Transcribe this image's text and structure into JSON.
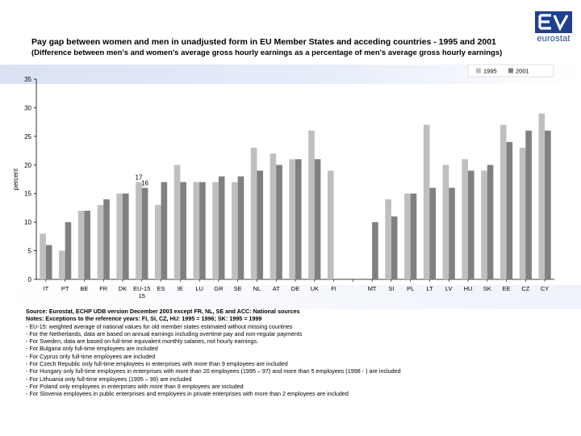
{
  "header": {
    "title": "Pay gap between women and men in unadjusted form in EU Member States and acceding countries - 1995 and 2001",
    "subtitle": "(Difference between men's and women's average gross hourly earnings as a percentage of men's average gross hourly earnings)",
    "logo_text": "eurostat"
  },
  "colors": {
    "series_1995": "#bfbfbf",
    "series_2001": "#808080",
    "brand": "#1f3f8f"
  },
  "chart_data": {
    "type": "bar",
    "ylabel": "percent",
    "ylim": [
      0,
      35
    ],
    "yticks": [
      0,
      5,
      10,
      15,
      20,
      25,
      30,
      35
    ],
    "grid": false,
    "legend_position": "top-right",
    "categories": [
      "IT",
      "PT",
      "BE",
      "FR",
      "DK",
      "EU-15",
      "ES",
      "IE",
      "LU",
      "GR",
      "SE",
      "NL",
      "AT",
      "DE",
      "UK",
      "FI",
      "",
      "MT",
      "SI",
      "PL",
      "LT",
      "LV",
      "HU",
      "SK",
      "EE",
      "CZ",
      "CY"
    ],
    "category_sublabels": {
      "5": "15"
    },
    "series": [
      {
        "name": "1995",
        "values": [
          8,
          5,
          12,
          13,
          15,
          17,
          13,
          20,
          17,
          17,
          17,
          23,
          22,
          21,
          26,
          19,
          null,
          null,
          14,
          15,
          27,
          20,
          21,
          19,
          27,
          23,
          29
        ]
      },
      {
        "name": "2001",
        "values": [
          6,
          10,
          12,
          14,
          15,
          16,
          17,
          17,
          17,
          18,
          18,
          19,
          20,
          21,
          21,
          null,
          null,
          10,
          11,
          15,
          16,
          16,
          19,
          20,
          24,
          26,
          26
        ]
      }
    ],
    "annotations": [
      {
        "category": "EU-15",
        "series": "1995",
        "text": "17"
      },
      {
        "category": "EU-15",
        "series": "2001",
        "text": "16"
      }
    ]
  },
  "notes": {
    "source": "Source: Eurostat, ECHP UDB version December 2003 except FR, NL, SE and ACC: National sources",
    "notes_heading": "Notes: Exceptions to the reference years: FI, SI, CZ, HU: 1995 = 1996; SK: 1995 = 1999",
    "lines": [
      "- EU-15: weighted average of national values for old member states estimated without missing countries",
      "- For the Netherlands, data are based on annual earnings including overtime pay and non-regular payments",
      "- For Sweden, data are based on full-time equivalent monthly salaries, not hourly earnings.",
      "- For Bulgaria only full-time employees are included",
      "- For Cyprus only full-time employees are included",
      "- For Czech Republic only full-time employees in enterprises with more than 9 employees are included",
      "- For Hungary only full-time employees in enterprises with more than 20 employees (1995 – 97) and more than 5 employees (1998 - ) are included",
      "- For Lithuania only full-time employees (1995 – 99) are included",
      "- For Poland only employees in enterprises with more than 9 employees are included",
      "- For Slovenia employees in public enterprises and employees in private enterprises with more than 2 employees are included"
    ]
  }
}
